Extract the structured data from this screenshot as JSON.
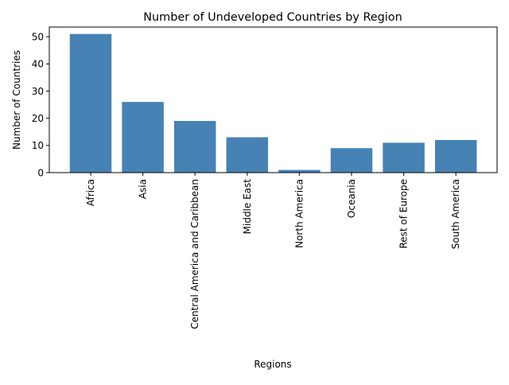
{
  "chart_data": {
    "type": "bar",
    "title": "Number of Undeveloped Countries by Region",
    "xlabel": "Regions",
    "ylabel": "Number of Countries",
    "categories": [
      "Africa",
      "Asia",
      "Central America and Caribbean",
      "Middle East",
      "North America",
      "Oceania",
      "Rest of Europe",
      "South America"
    ],
    "values": [
      51,
      26,
      19,
      13,
      1,
      9,
      11,
      12
    ],
    "ylim": [
      0,
      53.55
    ],
    "yticks": [
      0,
      10,
      20,
      30,
      40,
      50
    ],
    "bar_color": "#4682b4",
    "grid": false,
    "legend": "none"
  }
}
